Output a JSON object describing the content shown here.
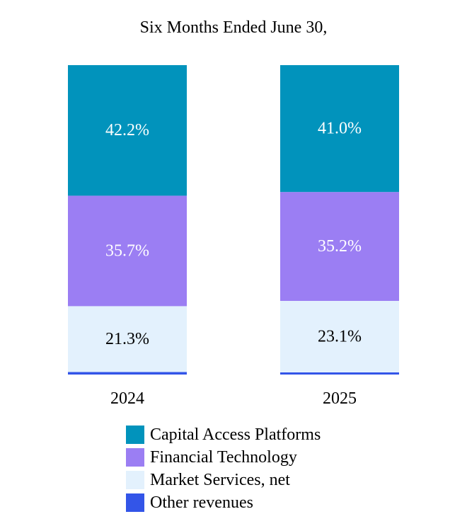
{
  "chart_data": {
    "type": "bar",
    "stacked": true,
    "normalized_percent": true,
    "title": "Six Months Ended June 30,",
    "categories": [
      "2024",
      "2025"
    ],
    "series": [
      {
        "name": "Other revenues",
        "values": [
          0.8,
          0.7
        ],
        "color": "#3355e8",
        "label_color": "#000000",
        "show_label": false
      },
      {
        "name": "Market Services, net",
        "values": [
          21.3,
          23.1
        ],
        "color": "#e3f1fd",
        "label_color": "#000000",
        "label": [
          "21.3%",
          "23.1%"
        ],
        "show_label": true
      },
      {
        "name": "Financial Technology",
        "values": [
          35.7,
          35.2
        ],
        "color": "#9b7ef3",
        "label_color": "#ffffff",
        "label": [
          "35.7%",
          "35.2%"
        ],
        "show_label": true
      },
      {
        "name": "Capital Access Platforms",
        "values": [
          42.2,
          41.0
        ],
        "color": "#0193bc",
        "label_color": "#ffffff",
        "label": [
          "42.2%",
          "41.0%"
        ],
        "show_label": true
      }
    ],
    "legend_order": [
      "Capital Access Platforms",
      "Financial Technology",
      "Market Services, net",
      "Other revenues"
    ],
    "legend_position": "bottom",
    "grid": false,
    "ylim": [
      0,
      100
    ]
  }
}
